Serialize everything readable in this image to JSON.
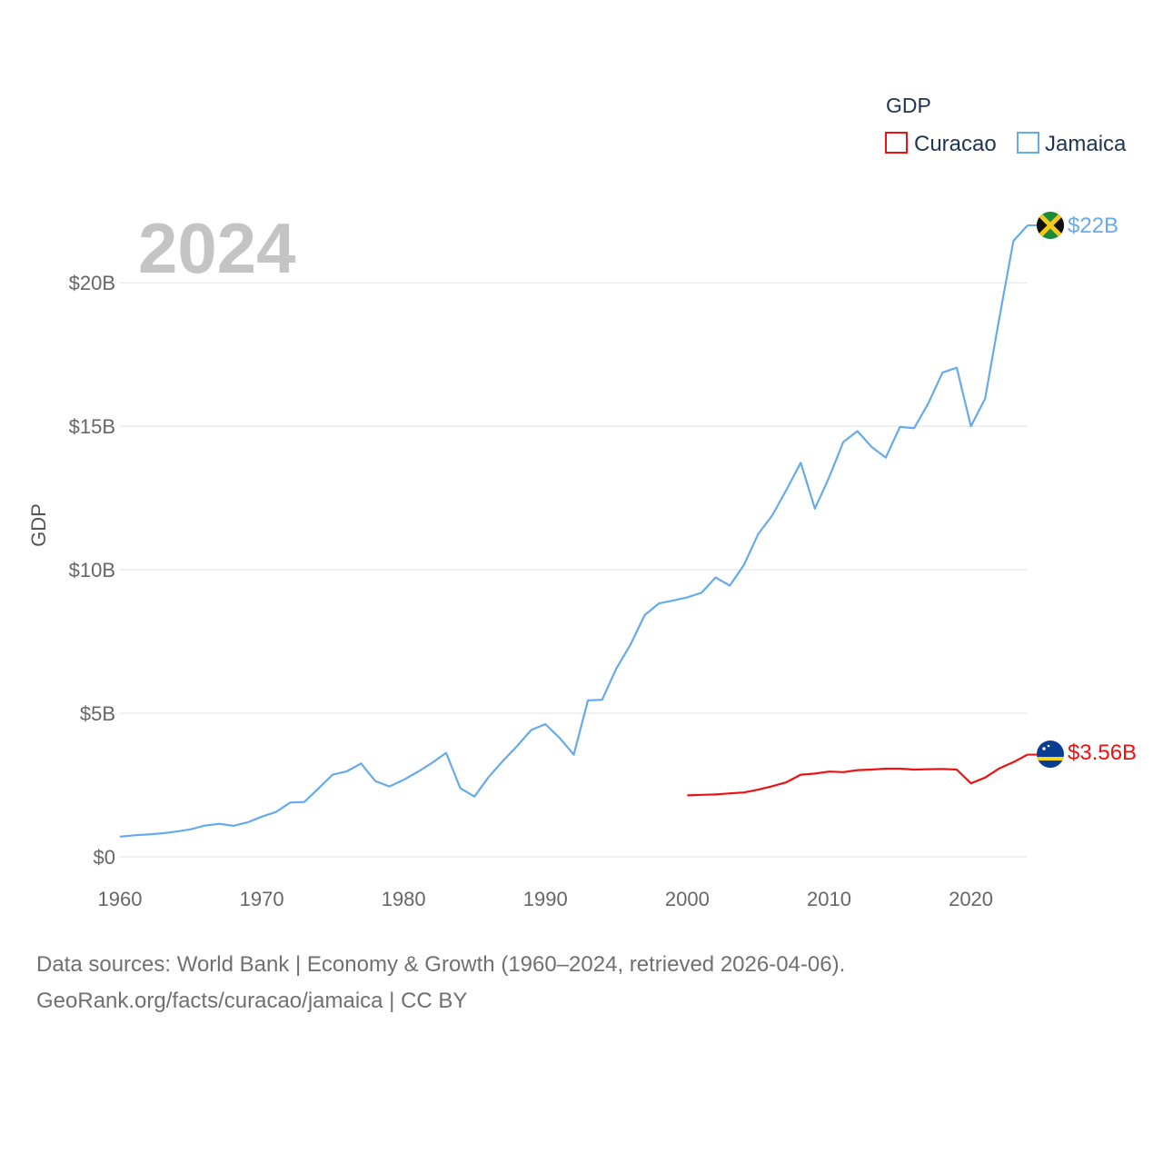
{
  "chart_data": {
    "type": "line",
    "year_label": "2024",
    "ylabel": "GDP",
    "legend_title": "GDP",
    "xlim": [
      1960,
      2024
    ],
    "ylim": [
      0,
      22
    ],
    "x_ticks": [
      1960,
      1970,
      1980,
      1990,
      2000,
      2010,
      2020
    ],
    "x_tick_labels": [
      "1960",
      "1970",
      "1980",
      "1990",
      "2000",
      "2010",
      "2020"
    ],
    "y_ticks": [
      0,
      5,
      10,
      15,
      20
    ],
    "y_tick_labels": [
      "$0",
      "$5B",
      "$10B",
      "$15B",
      "$20B"
    ],
    "series": [
      {
        "name": "Curacao",
        "color": "#ee1111",
        "end_label": "$3.56B",
        "flag": "curacao-flag",
        "x": [
          2000,
          2001,
          2002,
          2003,
          2004,
          2005,
          2006,
          2007,
          2008,
          2009,
          2010,
          2011,
          2012,
          2013,
          2014,
          2015,
          2016,
          2017,
          2018,
          2019,
          2020,
          2021,
          2022,
          2023,
          2024
        ],
        "values": [
          2.14,
          2.16,
          2.17,
          2.21,
          2.24,
          2.34,
          2.46,
          2.6,
          2.86,
          2.9,
          2.97,
          2.95,
          3.02,
          3.04,
          3.07,
          3.07,
          3.04,
          3.05,
          3.06,
          3.04,
          2.56,
          2.76,
          3.08,
          3.3,
          3.56
        ]
      },
      {
        "name": "Jamaica",
        "color": "#66aaee",
        "end_label": "$22B",
        "flag": "jamaica-flag",
        "x": [
          1960,
          1961,
          1962,
          1963,
          1964,
          1965,
          1966,
          1967,
          1968,
          1969,
          1970,
          1971,
          1972,
          1973,
          1974,
          1975,
          1976,
          1977,
          1978,
          1979,
          1980,
          1981,
          1982,
          1983,
          1984,
          1985,
          1986,
          1987,
          1988,
          1989,
          1990,
          1991,
          1992,
          1993,
          1994,
          1995,
          1996,
          1997,
          1998,
          1999,
          2000,
          2001,
          2002,
          2003,
          2004,
          2005,
          2006,
          2007,
          2008,
          2009,
          2010,
          2011,
          2012,
          2013,
          2014,
          2015,
          2016,
          2017,
          2018,
          2019,
          2020,
          2021,
          2022,
          2023,
          2024
        ],
        "values": [
          0.7,
          0.75,
          0.78,
          0.82,
          0.88,
          0.96,
          1.09,
          1.15,
          1.08,
          1.2,
          1.4,
          1.56,
          1.89,
          1.91,
          2.38,
          2.86,
          2.98,
          3.25,
          2.64,
          2.45,
          2.68,
          2.96,
          3.27,
          3.62,
          2.39,
          2.1,
          2.78,
          3.34,
          3.86,
          4.42,
          4.62,
          4.14,
          3.56,
          5.45,
          5.47,
          6.56,
          7.39,
          8.42,
          8.83,
          8.93,
          9.04,
          9.2,
          9.73,
          9.45,
          10.17,
          11.24,
          11.9,
          12.79,
          13.73,
          12.13,
          13.22,
          14.45,
          14.83,
          14.28,
          13.91,
          14.98,
          14.93,
          15.8,
          16.87,
          17.04,
          15.0,
          15.96,
          18.76,
          21.46,
          22.0
        ]
      }
    ]
  },
  "footer": {
    "line1": "Data sources: World Bank | Economy & Growth (1960–2024, retrieved 2026-04-06).",
    "line2": "GeoRank.org/facts/curacao/jamaica | CC BY"
  }
}
